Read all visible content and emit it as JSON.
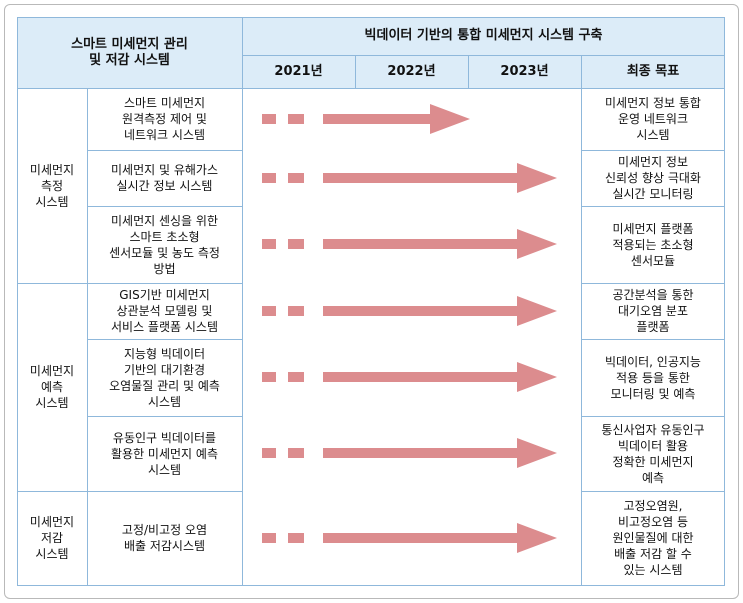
{
  "header": {
    "left_title": "스마트 미세먼지 관리\n및 저감 시스템",
    "right_title": "빅데이터 기반의 통합 미세먼지 시스템 구축",
    "years": [
      "2021년",
      "2022년",
      "2023년"
    ],
    "final_goal": "최종 목표"
  },
  "categories": [
    {
      "label": "미세먼지\n측정\n시스템"
    },
    {
      "label": "미세먼지\n예측\n시스템"
    },
    {
      "label": "미세먼지\n저감\n시스템"
    }
  ],
  "rows": [
    {
      "system": "스마트 미세먼지\n원격측정 제어 및\n네트워크 시스템",
      "goal": "미세먼지 정보 통합\n운영 네트워크\n시스템",
      "arrow_end_year": "2022년"
    },
    {
      "system": "미세먼지 및 유해가스\n실시간 정보 시스템",
      "goal": "미세먼지 정보\n신뢰성 향상 극대화\n실시간 모니터링",
      "arrow_end_year": "2023년"
    },
    {
      "system": "미세먼지 센싱을 위한\n스마트 초소형\n센서모듈 및 농도 측정\n방법",
      "goal": "미세먼지 플랫폼\n적용되는 초소형\n센서모듈",
      "arrow_end_year": "2023년"
    },
    {
      "system": "GIS기반 미세먼지\n상관분석 모델링 및\n서비스 플랫폼 시스템",
      "goal": "공간분석을 통한\n대기오염 분포\n플랫폼",
      "arrow_end_year": "2023년"
    },
    {
      "system": "지능형 빅데이터\n기반의 대기환경\n오염물질 관리 및 예측\n시스템",
      "goal": "빅데이터, 인공지능\n적용 등을 통한\n모니터링 및 예측",
      "arrow_end_year": "2023년"
    },
    {
      "system": "유동인구 빅데이터를\n활용한 미세먼지 예측\n시스템",
      "goal": "통신사업자 유동인구\n빅데이터 활용\n정확한 미세먼지\n예측",
      "arrow_end_year": "2023년"
    },
    {
      "system": "고정/비고정 오염\n배출 저감시스템",
      "goal": "고정오염원,\n비고정오염 등\n원인물질에 대한\n배출 저감 할 수\n있는 시스템",
      "arrow_end_year": "2023년"
    }
  ],
  "colors": {
    "header_bg": "#dcecf8",
    "grid": "#8fb8db",
    "arrow": "#dc8c8e"
  }
}
